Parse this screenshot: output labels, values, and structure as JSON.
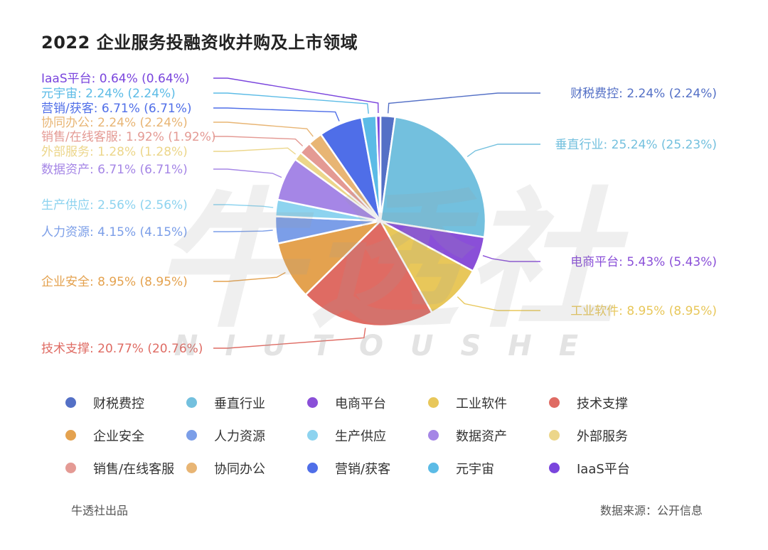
{
  "chart_data": {
    "type": "pie",
    "title": "2022 企业服务投融资收并购及上市领域",
    "label_format": "{name}: {pct} ({pct2})",
    "slices": [
      {
        "name": "财税费控",
        "value": 2.24,
        "pct": "2.24%",
        "pct2": "2.24%",
        "color": "#5470c6"
      },
      {
        "name": "垂直行业",
        "value": 25.24,
        "pct": "25.24%",
        "pct2": "25.23%",
        "color": "#73c0de"
      },
      {
        "name": "电商平台",
        "value": 5.43,
        "pct": "5.43%",
        "pct2": "5.43%",
        "color": "#8a4fd8"
      },
      {
        "name": "工业软件",
        "value": 8.95,
        "pct": "8.95%",
        "pct2": "8.95%",
        "color": "#e8c75a"
      },
      {
        "name": "技术支撑",
        "value": 20.77,
        "pct": "20.77%",
        "pct2": "20.76%",
        "color": "#df6b63"
      },
      {
        "name": "企业安全",
        "value": 8.95,
        "pct": "8.95%",
        "pct2": "8.95%",
        "color": "#e4a24f"
      },
      {
        "name": "人力资源",
        "value": 4.15,
        "pct": "4.15%",
        "pct2": "4.15%",
        "color": "#7b9ee8"
      },
      {
        "name": "生产供应",
        "value": 2.56,
        "pct": "2.56%",
        "pct2": "2.56%",
        "color": "#8dd3ef"
      },
      {
        "name": "数据资产",
        "value": 6.71,
        "pct": "6.71%",
        "pct2": "6.71%",
        "color": "#a586e6"
      },
      {
        "name": "外部服务",
        "value": 1.28,
        "pct": "1.28%",
        "pct2": "1.28%",
        "color": "#ecd68a"
      },
      {
        "name": "销售/在线客服",
        "value": 1.92,
        "pct": "1.92%",
        "pct2": "1.92%",
        "color": "#e49a94"
      },
      {
        "name": "协同办公",
        "value": 2.24,
        "pct": "2.24%",
        "pct2": "2.24%",
        "color": "#e8b574"
      },
      {
        "name": "营销/获客",
        "value": 6.71,
        "pct": "6.71%",
        "pct2": "6.71%",
        "color": "#4f6ee8"
      },
      {
        "name": "元宇宙",
        "value": 2.24,
        "pct": "2.24%",
        "pct2": "2.24%",
        "color": "#5bbbe6"
      },
      {
        "name": "IaaS平台",
        "value": 0.64,
        "pct": "0.64%",
        "pct2": "0.64%",
        "color": "#7a45dd"
      }
    ],
    "legend_placement": "bottom"
  },
  "watermark": {
    "logo_text": "牛透社",
    "sub_text": "NIUTOUSHE"
  },
  "footer": {
    "left": "牛透社出品",
    "right": "数据来源：公开信息"
  }
}
